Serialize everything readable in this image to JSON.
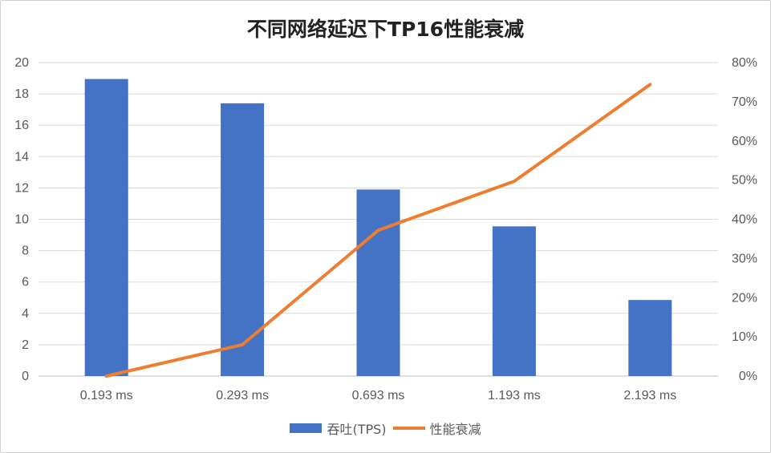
{
  "chart_data": {
    "type": "bar",
    "title": "不同网络延迟下TP16性能衰减",
    "categories": [
      "0.193 ms",
      "0.293 ms",
      "0.693 ms",
      "1.193 ms",
      "2.193 ms"
    ],
    "series": [
      {
        "name": "吞吐(TPS)",
        "type": "bar",
        "axis": "left",
        "color": "#4472c4",
        "values": [
          18.95,
          17.4,
          11.9,
          9.55,
          4.85
        ]
      },
      {
        "name": "性能衰减",
        "type": "line",
        "axis": "right",
        "color": "#ed7d31",
        "values": [
          0.0,
          0.08,
          0.372,
          0.497,
          0.744
        ]
      }
    ],
    "y_left": {
      "range": [
        0,
        20
      ],
      "ticks": [
        "0",
        "2",
        "4",
        "6",
        "8",
        "10",
        "12",
        "14",
        "16",
        "18",
        "20"
      ]
    },
    "y_right": {
      "range": [
        0,
        0.8
      ],
      "ticks": [
        "0%",
        "10%",
        "20%",
        "30%",
        "40%",
        "50%",
        "60%",
        "70%",
        "80%"
      ]
    },
    "grid": true,
    "legend": "bottom"
  }
}
